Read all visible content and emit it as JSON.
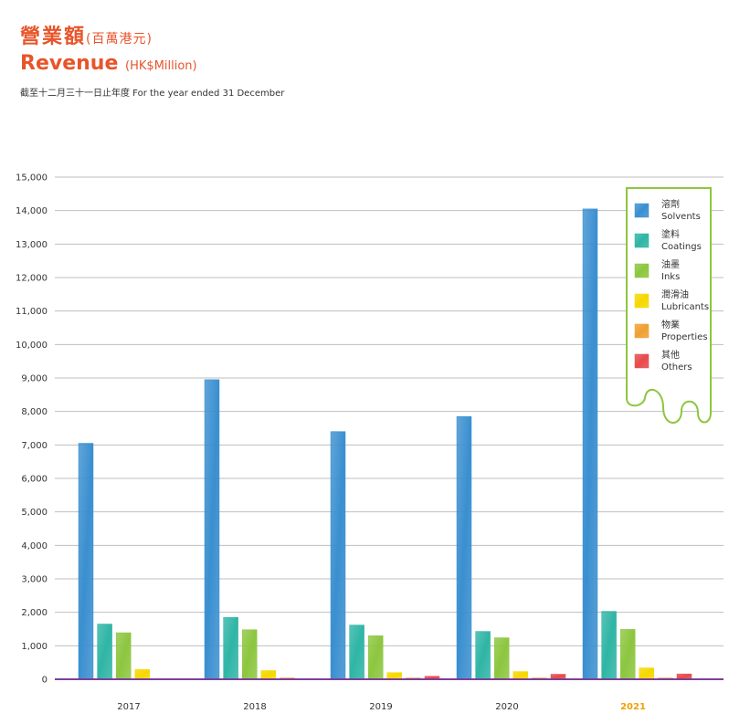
{
  "header": {
    "title_zh": "營業額",
    "title_zh_unit": "(百萬港元)",
    "title_en": "Revenue",
    "title_en_unit": "(HK$Million)",
    "subtitle": "截至十二月三十一日止年度 For the year ended 31 December"
  },
  "colors": {
    "accent": "#e8552a",
    "legend_border": "#8cc63f",
    "highlight_year": "#f0a000",
    "baseline": "#7b3f98",
    "gridline": "#bfbfbf"
  },
  "chart_data": {
    "type": "bar",
    "title": "Revenue (HK$Million)",
    "xlabel": "",
    "ylabel": "",
    "ylim": [
      0,
      15000
    ],
    "yticks": [
      0,
      1000,
      2000,
      3000,
      4000,
      5000,
      6000,
      7000,
      8000,
      9000,
      10000,
      11000,
      12000,
      13000,
      14000,
      15000
    ],
    "ytick_labels": [
      "0",
      "1,000",
      "2,000",
      "3,000",
      "4,000",
      "5,000",
      "6,000",
      "7,000",
      "8,000",
      "9,000",
      "10,000",
      "11,000",
      "12,000",
      "13,000",
      "14,000",
      "15,000"
    ],
    "categories": [
      "2017",
      "2018",
      "2019",
      "2020",
      "2021"
    ],
    "highlight_category": "2021",
    "grid": true,
    "legend_position": "top-right",
    "series": [
      {
        "name": "溶劑 Solvents",
        "name_zh": "溶劑",
        "name_en": "Solvents",
        "color": "#3a8fd0",
        "values": [
          7050,
          8950,
          7400,
          7850,
          14050
        ]
      },
      {
        "name": "塗料 Coatings",
        "name_zh": "塗料",
        "name_en": "Coatings",
        "color": "#2fb5a5",
        "values": [
          1650,
          1850,
          1620,
          1430,
          2030
        ]
      },
      {
        "name": "油墨 Inks",
        "name_zh": "油墨",
        "name_en": "Inks",
        "color": "#8cc63f",
        "values": [
          1390,
          1480,
          1300,
          1240,
          1490
        ]
      },
      {
        "name": "潤滑油 Lubricants",
        "name_zh": "潤滑油",
        "name_en": "Lubricants",
        "color": "#f5d800",
        "values": [
          290,
          260,
          200,
          230,
          340
        ]
      },
      {
        "name": "物業 Properties",
        "name_zh": "物業",
        "name_en": "Properties",
        "color": "#f0a030",
        "values": [
          0,
          40,
          40,
          40,
          40
        ]
      },
      {
        "name": "其他 Others",
        "name_zh": "其他",
        "name_en": "Others",
        "color": "#e84a4a",
        "values": [
          0,
          0,
          90,
          150,
          160
        ]
      }
    ]
  }
}
